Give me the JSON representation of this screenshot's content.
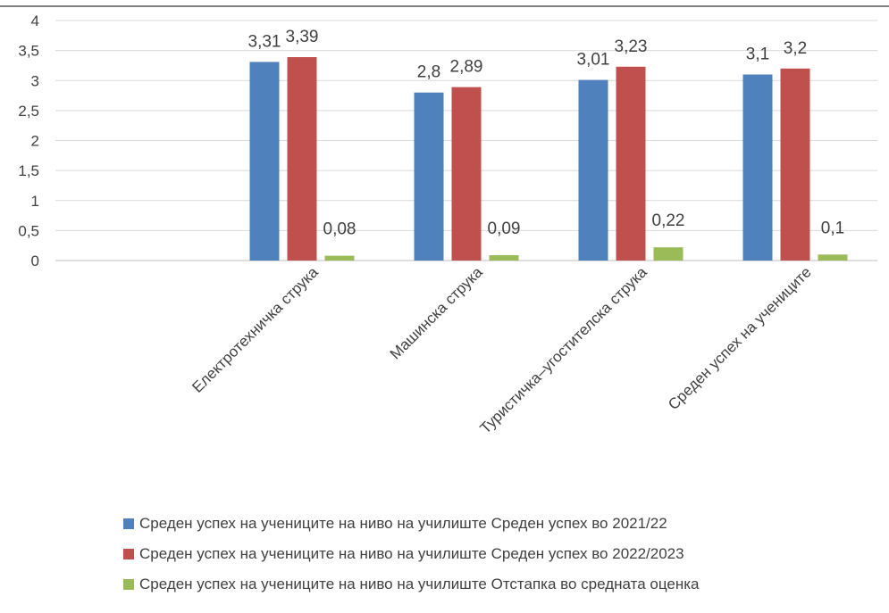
{
  "chart_data": {
    "type": "bar",
    "categories": [
      "",
      "Електротехничка струка",
      "Машинска струка",
      "Туристичка–угостителска струка",
      "Среден успех на учениците"
    ],
    "series": [
      {
        "name": "Среден успех на учениците на ниво на училиште Среден успех во 2021/22",
        "color": "#4f81bd",
        "values": [
          null,
          3.31,
          2.8,
          3.01,
          3.1
        ],
        "labels": [
          "",
          "3,31",
          "2,8",
          "3,01",
          "3,1"
        ]
      },
      {
        "name": "Среден успех на учениците на ниво на училиште Среден успех во 2022/2023",
        "color": "#c0504d",
        "values": [
          null,
          3.39,
          2.89,
          3.23,
          3.2
        ],
        "labels": [
          "",
          "3,39",
          "2,89",
          "3,23",
          "3,2"
        ]
      },
      {
        "name": "Среден успех на учениците на ниво на училиште Отстапка во средната оценка",
        "color": "#9bbb59",
        "values": [
          null,
          0.08,
          0.09,
          0.22,
          0.1
        ],
        "labels": [
          "",
          "0,08",
          "0,09",
          "0,22",
          "0,1"
        ]
      }
    ],
    "ylim": [
      0,
      4
    ],
    "yticks": [
      0,
      0.5,
      1,
      1.5,
      2,
      2.5,
      3,
      3.5,
      4
    ],
    "ytick_labels": [
      "0",
      "0,5",
      "1",
      "1,5",
      "2",
      "2,5",
      "3",
      "3,5",
      "4"
    ],
    "grid": true,
    "legend_position": "bottom"
  }
}
